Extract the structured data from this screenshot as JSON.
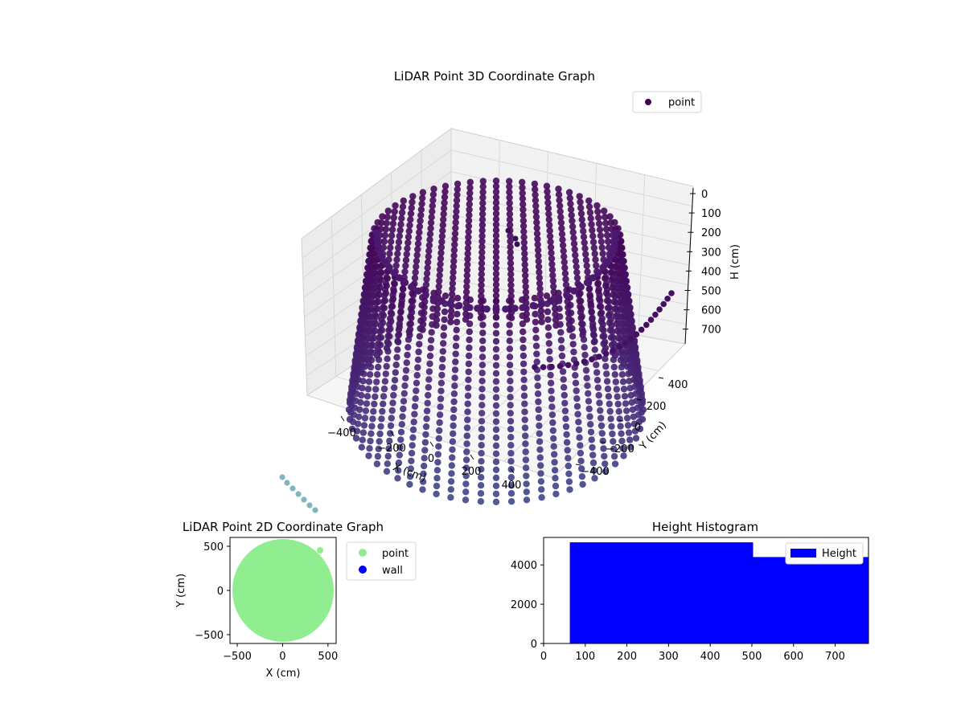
{
  "chart_data": [
    {
      "type": "scatter",
      "projection": "3d",
      "title": "LiDAR Point 3D Coordinate Graph",
      "xlabel": "X (cm)",
      "ylabel": "Y (cm)",
      "zlabel": "H (cm)",
      "xlim": [
        -600,
        600
      ],
      "ylim": [
        -550,
        550
      ],
      "zlim": [
        780,
        0
      ],
      "x_ticks": [
        "−400",
        "−200",
        "0",
        "200",
        "400"
      ],
      "y_ticks": [
        "−400",
        "−200",
        "0",
        "200",
        "400"
      ],
      "z_ticks": [
        "0",
        "100",
        "200",
        "300",
        "400",
        "500",
        "600",
        "700"
      ],
      "grid": true,
      "colormap": "viridis",
      "legend": {
        "position": "top-right",
        "entries": [
          {
            "label": "point",
            "color": "#440154"
          }
        ]
      },
      "series": [
        {
          "name": "point",
          "structure": "radial scan rings of points",
          "azimuth_count": 60,
          "radius_cm": 520,
          "height_range_cm": [
            50,
            780
          ]
        }
      ],
      "stray_points": {
        "color": "#6aaab0"
      }
    },
    {
      "type": "scatter",
      "title": "LiDAR Point 2D Coordinate Graph",
      "xlabel": "X (cm)",
      "ylabel": "Y (cm)",
      "xlim": [
        -580,
        590
      ],
      "ylim": [
        -600,
        600
      ],
      "x_ticks": [
        -500,
        0,
        500
      ],
      "y_ticks": [
        -500,
        0,
        500
      ],
      "grid": false,
      "legend": {
        "position": "outside-right",
        "entries": [
          {
            "label": "point",
            "color": "#90ee90"
          },
          {
            "label": "wall",
            "color": "#0000ff"
          }
        ]
      },
      "series": [
        {
          "name": "point",
          "color": "#90ee90",
          "shape": "filled ellipse",
          "center": [
            0,
            0
          ],
          "rx": 560,
          "ry": 590
        },
        {
          "name": "wall",
          "color": "#0000ff",
          "points": []
        }
      ]
    },
    {
      "type": "bar",
      "title": "Height Histogram",
      "xlabel": "",
      "ylabel": "",
      "xlim": [
        0,
        780
      ],
      "ylim": [
        0,
        5400
      ],
      "x_ticks": [
        0,
        100,
        200,
        300,
        400,
        500,
        600,
        700
      ],
      "y_ticks": [
        0,
        2000,
        4000
      ],
      "grid": false,
      "legend": {
        "position": "top-right",
        "entries": [
          {
            "label": "Height",
            "color": "#0000ff"
          }
        ]
      },
      "bins": [
        {
          "from": 63,
          "to": 503,
          "count": 5150
        },
        {
          "from": 503,
          "to": 780,
          "count": 4400
        }
      ],
      "bar_color": "#0000ff"
    }
  ]
}
